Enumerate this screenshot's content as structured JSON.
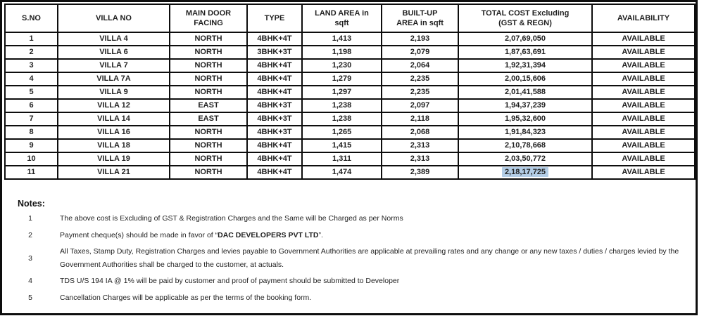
{
  "table": {
    "columns": [
      "S.NO",
      "VILLA NO",
      "MAIN DOOR\nFACING",
      "TYPE",
      "LAND AREA in\nsqft",
      "BUILT-UP\nAREA in sqft",
      "TOTAL COST  Excluding\n(GST & REGN)",
      "AVAILABILITY"
    ],
    "rows": [
      [
        "1",
        "VILLA 4",
        "NORTH",
        "4BHK+4T",
        "1,413",
        "2,193",
        "2,07,69,050",
        "AVAILABLE"
      ],
      [
        "2",
        "VILLA 6",
        "NORTH",
        "3BHK+3T",
        "1,198",
        "2,079",
        "1,87,63,691",
        "AVAILABLE"
      ],
      [
        "3",
        "VILLA 7",
        "NORTH",
        "4BHK+4T",
        "1,230",
        "2,064",
        "1,92,31,394",
        "AVAILABLE"
      ],
      [
        "4",
        "VILLA 7A",
        "NORTH",
        "4BHK+4T",
        "1,279",
        "2,235",
        "2,00,15,606",
        "AVAILABLE"
      ],
      [
        "5",
        "VILLA 9",
        "NORTH",
        "4BHK+4T",
        "1,297",
        "2,235",
        "2,01,41,588",
        "AVAILABLE"
      ],
      [
        "6",
        "VILLA 12",
        "EAST",
        "4BHK+3T",
        "1,238",
        "2,097",
        "1,94,37,239",
        "AVAILABLE"
      ],
      [
        "7",
        "VILLA 14",
        "EAST",
        "4BHK+3T",
        "1,238",
        "2,118",
        "1,95,32,600",
        "AVAILABLE"
      ],
      [
        "8",
        "VILLA 16",
        "NORTH",
        "4BHK+3T",
        "1,265",
        "2,068",
        "1,91,84,323",
        "AVAILABLE"
      ],
      [
        "9",
        "VILLA 18",
        "NORTH",
        "4BHK+4T",
        "1,415",
        "2,313",
        "2,10,78,668",
        "AVAILABLE"
      ],
      [
        "10",
        "VILLA 19",
        "NORTH",
        "4BHK+4T",
        "1,311",
        "2,313",
        "2,03,50,772",
        "AVAILABLE"
      ],
      [
        "11",
        "VILLA 21",
        "NORTH",
        "4BHK+4T",
        "1,474",
        "2,389",
        "2,18,17,725",
        "AVAILABLE"
      ]
    ],
    "highlight": {
      "row": 10,
      "col": 6
    }
  },
  "notes": {
    "heading": "Notes:",
    "items": [
      {
        "num": "1",
        "parts": [
          {
            "text": "The above cost is Excluding of GST & Registration Charges and the Same will be Charged as per Norms"
          }
        ]
      },
      {
        "num": "2",
        "parts": [
          {
            "text": "Payment cheque(s) should be made in favor of “"
          },
          {
            "text": "DAC DEVELOPERS PVT LTD",
            "bold": true
          },
          {
            "text": "”."
          }
        ]
      },
      {
        "num": "3",
        "parts": [
          {
            "text": "All Taxes, Stamp Duty, Registration Charges and levies payable to Government Authorities are applicable at prevailing rates and any change or any new taxes / duties / charges levied by the Government Authorities shall be charged to the customer, at actuals."
          }
        ]
      },
      {
        "num": "4",
        "parts": [
          {
            "text": "TDS U/S 194 IA @ 1% will be paid by customer and proof of payment should be submitted to Developer"
          }
        ]
      },
      {
        "num": "5",
        "parts": [
          {
            "text": "Cancellation Charges will be applicable as per the terms of the booking form."
          }
        ]
      }
    ]
  },
  "colors": {
    "selection_highlight": "#b3cde6",
    "border": "#0d0d0d",
    "text": "#1f1f1f"
  }
}
